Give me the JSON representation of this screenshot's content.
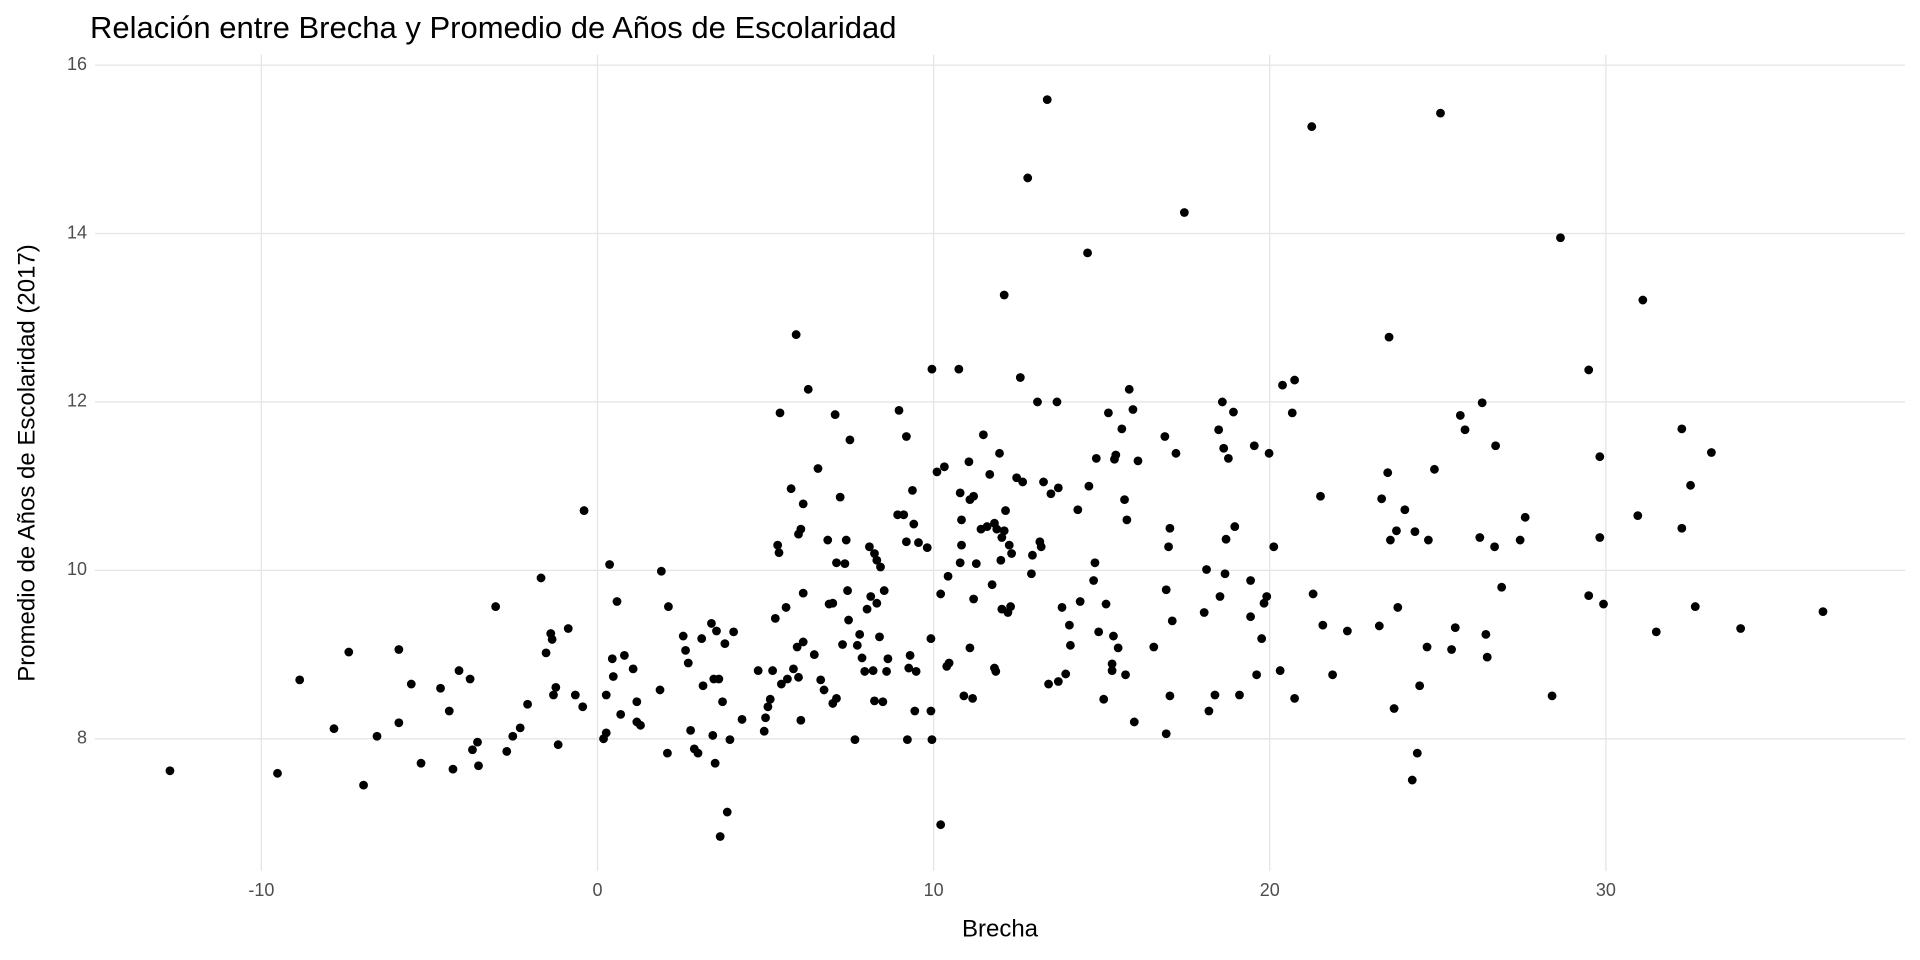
{
  "chart_data": {
    "type": "scatter",
    "title": "Relación entre Brecha y Promedio de Años de Escolaridad",
    "x_label": "Brecha",
    "y_label": "Promedio de Años de Escolaridad (2017)",
    "color": "#000000",
    "grid": true,
    "xlim": [
      -14.95,
      38.9
    ],
    "ylim": [
      6.43,
      16.12
    ],
    "xticks": [
      -10,
      0,
      10,
      20,
      30
    ],
    "yticks": [
      8,
      10,
      12,
      14,
      16
    ],
    "x": [
      -12.72,
      -9.52,
      -8.86,
      -7.84,
      -7.4,
      -6.96,
      -6.56,
      -5.91,
      -5.91,
      -5.54,
      -5.25,
      -4.67,
      -4.41,
      -4.3,
      -4.12,
      -3.79,
      -3.72,
      -3.57,
      -3.54,
      -3.03,
      -2.7,
      -2.52,
      -2.3,
      -2.08,
      -1.68,
      -1.53,
      -1.39,
      -1.35,
      -1.31,
      -1.24,
      -1.17,
      -0.87,
      -0.66,
      -0.44,
      -0.4,
      0.18,
      0.26,
      0.26,
      0.36,
      0.44,
      0.47,
      0.58,
      0.69,
      0.8,
      1.06,
      1.17,
      1.17,
      1.28,
      1.86,
      1.9,
      2.08,
      2.11,
      2.55,
      2.62,
      2.7,
      2.77,
      2.88,
      2.99,
      3.1,
      3.14,
      3.39,
      3.43,
      3.46,
      3.5,
      3.54,
      3.61,
      3.65,
      3.72,
      3.79,
      3.86,
      3.94,
      4.05,
      4.3,
      4.78,
      4.96,
      5,
      5.07,
      5.14,
      5.21,
      5.29,
      5.36,
      5.4,
      5.43,
      5.47,
      5.61,
      5.65,
      5.76,
      5.83,
      5.91,
      5.94,
      5.98,
      5.98,
      6.05,
      6.05,
      6.12,
      6.12,
      6.12,
      6.27,
      6.45,
      6.56,
      6.64,
      6.74,
      6.85,
      6.89,
      7,
      7,
      7.07,
      7.11,
      7.11,
      7.22,
      7.29,
      7.36,
      7.4,
      7.44,
      7.47,
      7.51,
      7.66,
      7.73,
      7.8,
      7.87,
      7.95,
      8.02,
      8.09,
      8.13,
      8.2,
      8.24,
      8.24,
      8.31,
      8.31,
      8.39,
      8.42,
      8.49,
      8.53,
      8.6,
      8.64,
      8.93,
      8.97,
      9.11,
      9.19,
      9.19,
      9.22,
      9.26,
      9.3,
      9.37,
      9.41,
      9.44,
      9.48,
      9.55,
      9.81,
      9.92,
      9.92,
      9.95,
      9.95,
      10.1,
      10.21,
      10.21,
      10.32,
      10.39,
      10.43,
      10.46,
      10.75,
      10.79,
      10.79,
      10.83,
      10.83,
      10.9,
      11.05,
      11.08,
      11.08,
      11.16,
      11.19,
      11.19,
      11.27,
      11.41,
      11.48,
      11.59,
      11.67,
      11.74,
      11.81,
      11.81,
      11.85,
      11.88,
      11.96,
      12,
      12.03,
      12.03,
      12.1,
      12.1,
      12.14,
      12.21,
      12.25,
      12.29,
      12.32,
      12.47,
      12.58,
      12.65,
      12.8,
      12.91,
      12.94,
      13.09,
      13.16,
      13.2,
      13.27,
      13.38,
      13.42,
      13.49,
      13.67,
      13.71,
      13.71,
      13.82,
      13.93,
      14.04,
      14.07,
      14.29,
      14.36,
      14.58,
      14.62,
      14.76,
      14.8,
      14.84,
      14.91,
      15.06,
      15.13,
      15.2,
      15.31,
      15.31,
      15.35,
      15.38,
      15.42,
      15.49,
      15.6,
      15.68,
      15.71,
      15.75,
      15.82,
      15.93,
      15.97,
      16.08,
      16.55,
      16.88,
      16.92,
      16.92,
      16.99,
      17.03,
      17.03,
      17.1,
      17.21,
      17.46,
      18.05,
      18.12,
      18.19,
      18.37,
      18.48,
      18.52,
      18.59,
      18.63,
      18.67,
      18.7,
      18.77,
      18.92,
      18.96,
      19.1,
      19.43,
      19.43,
      19.54,
      19.61,
      19.76,
      19.83,
      19.91,
      19.98,
      20.12,
      20.31,
      20.38,
      20.67,
      20.74,
      20.74,
      21.25,
      21.29,
      21.51,
      21.58,
      21.87,
      22.31,
      23.26,
      23.33,
      23.51,
      23.55,
      23.59,
      23.7,
      23.77,
      23.81,
      24.02,
      24.24,
      24.32,
      24.39,
      24.46,
      24.68,
      24.72,
      24.9,
      25.08,
      25.41,
      25.52,
      25.67,
      25.81,
      26.25,
      26.32,
      26.43,
      26.47,
      26.69,
      26.72,
      26.9,
      27.45,
      27.6,
      28.4,
      28.65,
      29.49,
      29.49,
      29.82,
      29.82,
      29.93,
      30.95,
      31.1,
      31.5,
      32.26,
      32.26,
      32.52,
      32.66,
      33.14,
      34.01,
      36.46
    ],
    "values": [
      7.62,
      7.59,
      8.7,
      8.12,
      9.03,
      7.45,
      8.03,
      9.06,
      8.19,
      8.65,
      7.71,
      8.6,
      8.33,
      7.64,
      8.81,
      8.71,
      7.87,
      7.96,
      7.68,
      9.57,
      7.85,
      8.03,
      8.13,
      8.41,
      9.91,
      9.02,
      9.25,
      9.18,
      8.52,
      8.61,
      7.93,
      9.31,
      8.52,
      8.38,
      10.71,
      8,
      8.07,
      8.52,
      10.07,
      8.95,
      8.74,
      9.63,
      8.29,
      8.99,
      8.83,
      8.44,
      8.2,
      8.16,
      8.58,
      9.99,
      7.83,
      9.57,
      9.22,
      9.05,
      8.9,
      8.1,
      7.88,
      7.83,
      9.19,
      8.63,
      9.37,
      8.04,
      8.71,
      7.71,
      9.28,
      8.71,
      6.84,
      8.44,
      9.13,
      7.13,
      7.99,
      9.27,
      8.23,
      8.81,
      8.09,
      8.25,
      8.38,
      8.47,
      8.81,
      9.43,
      10.3,
      10.21,
      11.87,
      8.65,
      9.56,
      8.71,
      10.97,
      8.83,
      12.8,
      9.09,
      10.43,
      8.73,
      10.49,
      8.22,
      10.79,
      9.73,
      9.15,
      12.15,
      9,
      11.21,
      8.7,
      8.58,
      10.36,
      9.6,
      9.61,
      8.42,
      11.85,
      10.09,
      8.48,
      10.87,
      9.12,
      10.08,
      10.36,
      9.76,
      9.41,
      11.55,
      7.99,
      9.11,
      9.24,
      8.96,
      8.8,
      9.54,
      10.28,
      9.69,
      8.81,
      10.2,
      8.45,
      10.12,
      9.61,
      9.21,
      10.04,
      8.44,
      9.76,
      8.8,
      8.95,
      10.66,
      11.9,
      10.66,
      11.59,
      10.34,
      7.99,
      8.84,
      8.99,
      10.95,
      10.55,
      8.33,
      8.8,
      10.33,
      10.27,
      9.19,
      8.33,
      12.39,
      7.99,
      11.17,
      6.98,
      9.72,
      11.23,
      8.86,
      9.93,
      8.9,
      12.39,
      10.09,
      10.92,
      10.3,
      10.6,
      8.51,
      11.29,
      10.84,
      9.08,
      8.48,
      9.66,
      10.88,
      10.08,
      10.49,
      11.61,
      10.52,
      11.14,
      9.83,
      8.84,
      10.56,
      8.8,
      10.49,
      11.39,
      10.12,
      10.39,
      9.54,
      13.27,
      10.47,
      10.71,
      9.5,
      10.3,
      9.57,
      10.2,
      11.1,
      12.29,
      11.05,
      14.66,
      9.96,
      10.18,
      12,
      10.34,
      10.28,
      11.05,
      15.59,
      8.65,
      10.91,
      12,
      10.98,
      8.68,
      9.56,
      8.77,
      9.35,
      9.11,
      10.72,
      9.63,
      13.77,
      11,
      9.88,
      10.09,
      11.33,
      9.27,
      8.47,
      9.6,
      11.87,
      8.89,
      8.81,
      9.22,
      11.32,
      11.37,
      9.08,
      11.68,
      10.84,
      8.76,
      10.6,
      12.15,
      11.91,
      8.2,
      11.3,
      9.09,
      11.59,
      9.77,
      8.06,
      10.28,
      8.51,
      10.5,
      9.4,
      11.39,
      14.25,
      9.5,
      10.01,
      8.33,
      8.52,
      11.67,
      9.69,
      12,
      11.45,
      9.96,
      10.37,
      11.33,
      11.88,
      10.52,
      8.52,
      9.88,
      9.45,
      11.48,
      8.76,
      9.19,
      9.61,
      9.69,
      11.39,
      10.28,
      8.81,
      12.2,
      11.87,
      8.48,
      12.26,
      15.27,
      9.72,
      10.88,
      9.35,
      8.76,
      9.28,
      9.34,
      10.85,
      11.16,
      12.77,
      10.36,
      8.36,
      10.47,
      9.56,
      10.72,
      7.51,
      10.46,
      7.83,
      8.63,
      9.09,
      10.36,
      11.2,
      15.43,
      9.06,
      9.32,
      11.84,
      11.67,
      10.39,
      11.99,
      9.24,
      8.97,
      10.28,
      11.48,
      9.8,
      10.36,
      10.63,
      8.51,
      13.95,
      12.38,
      9.7,
      11.35,
      10.39,
      9.6,
      10.65,
      13.21,
      9.27,
      11.68,
      10.5,
      11.01,
      9.57,
      11.4,
      9.31,
      9.51
    ]
  }
}
